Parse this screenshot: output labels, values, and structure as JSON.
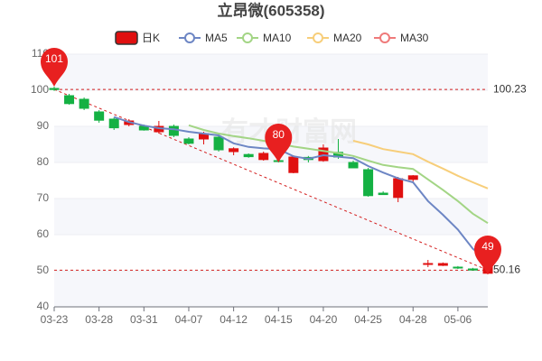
{
  "chart_data": {
    "type": "candlestick",
    "title": "立昂微(605358)",
    "watermark": "有才财富网",
    "categories": [
      "03-23",
      null,
      null,
      "03-28",
      null,
      null,
      "03-31",
      null,
      null,
      "04-07",
      null,
      null,
      "04-12",
      null,
      null,
      "04-15",
      null,
      null,
      "04-20",
      null,
      null,
      "04-25",
      null,
      null,
      "04-28",
      null,
      null,
      "05-06",
      null,
      null
    ],
    "ylim": [
      40,
      110
    ],
    "yticks": [
      40,
      50,
      60,
      70,
      80,
      90,
      100,
      110
    ],
    "grid": true,
    "candles": {
      "name": "日K",
      "up_color": "#e01010",
      "down_color": "#14b143",
      "open": [
        100.5,
        98.5,
        97.5,
        94,
        92,
        90.5,
        90,
        88.5,
        90,
        86.5,
        86.5,
        87,
        83,
        82.2,
        80.8,
        80.5,
        77.2,
        81.4,
        80.5,
        82.8,
        80,
        78,
        71.5,
        70.3,
        75.3,
        52,
        51.5,
        51,
        50.5,
        49.3
      ],
      "close": [
        100.2,
        96.3,
        95,
        91.7,
        89.6,
        91.5,
        89,
        90,
        87.5,
        85.3,
        88,
        83.5,
        83.8,
        81.6,
        82.5,
        80.3,
        81.5,
        80.8,
        84,
        81.5,
        78.5,
        70.8,
        71.1,
        75.5,
        76.3,
        52,
        52,
        50.8,
        50.2,
        51.2
      ],
      "high": [
        101,
        99,
        98,
        94.5,
        92.5,
        92,
        90.5,
        91.5,
        90.5,
        87,
        88.5,
        87.5,
        84.2,
        82.5,
        83,
        81,
        82,
        81.8,
        85,
        86.5,
        80.5,
        78.5,
        72,
        76,
        76.5,
        53,
        52.3,
        51.3,
        50.8,
        51.5
      ],
      "low": [
        99.8,
        96,
        94.5,
        91,
        89,
        90,
        88.8,
        88,
        87,
        85,
        85,
        83,
        82,
        81.3,
        80.5,
        80,
        77,
        80,
        80.2,
        81,
        78.5,
        70.5,
        71,
        69,
        74.5,
        51,
        51.3,
        50.5,
        50,
        49
      ]
    },
    "series": [
      {
        "name": "MA5",
        "color": "#6d86c4",
        "values": [
          null,
          null,
          null,
          null,
          92.6,
          91.2,
          90.2,
          89.5,
          89.2,
          88.5,
          88,
          87.5,
          85.3,
          84.3,
          83.9,
          83.7,
          81.7,
          81,
          82,
          81.6,
          81.2,
          79,
          77.2,
          75.6,
          74.5,
          69.3,
          65.5,
          61.4,
          56.1,
          52.6
        ]
      },
      {
        "name": "MA10",
        "color": "#a3d585",
        "values": [
          null,
          null,
          null,
          null,
          null,
          null,
          null,
          null,
          null,
          90.3,
          89,
          88,
          87.3,
          86.7,
          86,
          85.3,
          84.4,
          83.8,
          83.2,
          82.6,
          81.8,
          80.5,
          79.3,
          78.7,
          78.2,
          75.3,
          72.4,
          69.3,
          65.8,
          63.2
        ]
      },
      {
        "name": "MA20",
        "color": "#f7ce7a",
        "values": [
          null,
          null,
          null,
          null,
          null,
          null,
          null,
          null,
          null,
          null,
          null,
          null,
          null,
          null,
          null,
          null,
          null,
          null,
          null,
          null,
          86,
          85,
          83.7,
          83,
          82.3,
          80.2,
          78.3,
          76.3,
          74.5,
          72.8
        ]
      },
      {
        "name": "MA30",
        "color": "#ef7a7a",
        "values": [
          null,
          null,
          null,
          null,
          null,
          null,
          null,
          null,
          null,
          null,
          null,
          null,
          null,
          null,
          null,
          null,
          null,
          null,
          null,
          null,
          null,
          null,
          null,
          null,
          null,
          null,
          null,
          null,
          null,
          null
        ]
      }
    ],
    "ref_lines": [
      100.23,
      50.16
    ],
    "markers": [
      101,
      80,
      49
    ]
  }
}
